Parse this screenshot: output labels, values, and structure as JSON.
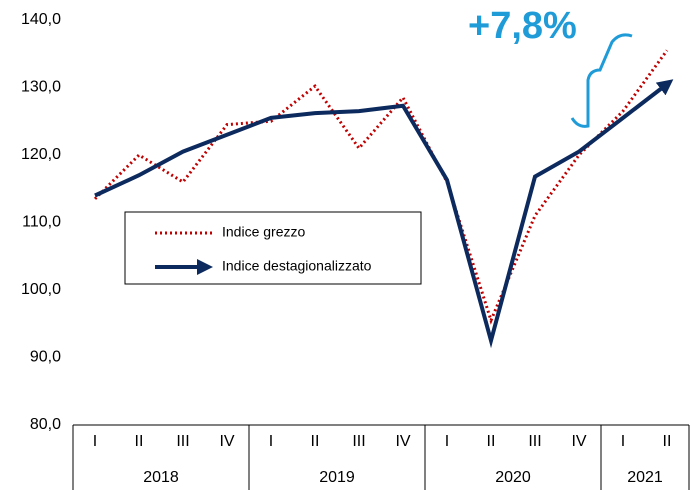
{
  "chart_data": {
    "type": "line",
    "annotation": "+7,8%",
    "categories": [
      "I",
      "II",
      "III",
      "IV",
      "I",
      "II",
      "III",
      "IV",
      "I",
      "II",
      "III",
      "IV",
      "I",
      "II"
    ],
    "year_groups": [
      {
        "label": "2018",
        "count": 4
      },
      {
        "label": "2019",
        "count": 4
      },
      {
        "label": "2020",
        "count": 4
      },
      {
        "label": "2021",
        "count": 2
      }
    ],
    "series": [
      {
        "name": "Indice grezzo",
        "color": "#c00000",
        "style": "dotted",
        "values": [
          113.5,
          120,
          116,
          124.5,
          125,
          130.2,
          121,
          128.5,
          116,
          95.5,
          111,
          120,
          126.5,
          135.5
        ]
      },
      {
        "name": "Indice destagionalizzato",
        "color": "#0d2a5e",
        "style": "arrow",
        "values": [
          114,
          117,
          120.5,
          123,
          125.5,
          126.2,
          126.5,
          127.3,
          116.3,
          92.5,
          116.8,
          120.5,
          125.5,
          130.5
        ]
      }
    ],
    "ylim": [
      80,
      140
    ],
    "yticks": [
      {
        "value": 80,
        "label": "80,0"
      },
      {
        "value": 90,
        "label": "90,0"
      },
      {
        "value": 100,
        "label": "100,0"
      },
      {
        "value": 110,
        "label": "110,0"
      },
      {
        "value": 120,
        "label": "120,0"
      },
      {
        "value": 130,
        "label": "130,0"
      },
      {
        "value": 140,
        "label": "140,0"
      }
    ],
    "grid": false
  }
}
